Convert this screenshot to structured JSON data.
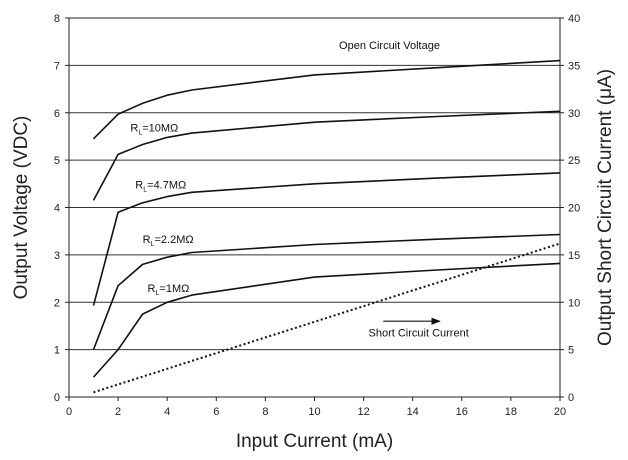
{
  "chart_data": {
    "type": "line",
    "title": "",
    "xlabel": "Input Current (mA)",
    "ylabel_left": "Output Voltage (VDC)",
    "ylabel_right": "Output Short Circuit Current (μA)",
    "xlim": [
      0,
      20
    ],
    "ylim_left": [
      0,
      8
    ],
    "ylim_right": [
      0,
      40
    ],
    "x_ticks": [
      "0",
      "2",
      "4",
      "6",
      "8",
      "10",
      "12",
      "14",
      "16",
      "18",
      "20"
    ],
    "y_ticks_left": [
      "0",
      "1",
      "2",
      "3",
      "4",
      "5",
      "6",
      "7",
      "8"
    ],
    "y_ticks_right": [
      "0",
      "5",
      "10",
      "15",
      "20",
      "25",
      "30",
      "35",
      "40"
    ],
    "grid": "horizontal",
    "series": [
      {
        "name": "Open Circuit Voltage",
        "axis": "left",
        "style": "solid",
        "x": [
          1,
          2,
          3,
          4,
          5,
          10,
          15,
          20
        ],
        "y": [
          5.45,
          5.97,
          6.2,
          6.37,
          6.48,
          6.8,
          6.95,
          7.1
        ]
      },
      {
        "name": "R_L=10MΩ",
        "axis": "left",
        "style": "solid",
        "x": [
          1,
          2,
          3,
          4,
          5,
          10,
          15,
          20
        ],
        "y": [
          4.15,
          5.12,
          5.33,
          5.48,
          5.57,
          5.8,
          5.92,
          6.03
        ]
      },
      {
        "name": "R_L=4.7MΩ",
        "axis": "left",
        "style": "solid",
        "x": [
          1,
          2,
          3,
          4,
          5,
          10,
          15,
          20
        ],
        "y": [
          1.93,
          3.9,
          4.1,
          4.23,
          4.32,
          4.5,
          4.62,
          4.73
        ]
      },
      {
        "name": "R_L=2.2MΩ",
        "axis": "left",
        "style": "solid",
        "x": [
          1,
          2,
          3,
          4,
          5,
          10,
          15,
          20
        ],
        "y": [
          1.0,
          2.35,
          2.8,
          2.95,
          3.05,
          3.22,
          3.33,
          3.43
        ]
      },
      {
        "name": "R_L=1MΩ",
        "axis": "left",
        "style": "solid",
        "x": [
          1,
          2,
          3,
          4,
          5,
          10,
          15,
          20
        ],
        "y": [
          0.42,
          1.0,
          1.75,
          2.0,
          2.15,
          2.53,
          2.68,
          2.82
        ]
      },
      {
        "name": "Short Circuit Current",
        "axis": "right",
        "style": "dotted",
        "x": [
          1,
          20
        ],
        "y": [
          0.5,
          16.2
        ]
      }
    ],
    "annotations": [
      {
        "text": "Open Circuit Voltage",
        "x": 11.0,
        "y": 7.35
      },
      {
        "prefix": "R",
        "sub": "L",
        "suffix": "=10MΩ",
        "x": 2.5,
        "y": 5.6
      },
      {
        "prefix": "R",
        "sub": "L",
        "suffix": "=4.7MΩ",
        "x": 2.7,
        "y": 4.4
      },
      {
        "prefix": "R",
        "sub": "L",
        "suffix": "=2.2MΩ",
        "x": 3.0,
        "y": 3.25
      },
      {
        "prefix": "R",
        "sub": "L",
        "suffix": "=1MΩ",
        "x": 3.2,
        "y": 2.22
      },
      {
        "text": "Short Circuit Current",
        "x": 12.2,
        "y": 1.28,
        "arrow": {
          "x1": 12.8,
          "x2": 15.1,
          "y": 1.6
        }
      }
    ]
  }
}
